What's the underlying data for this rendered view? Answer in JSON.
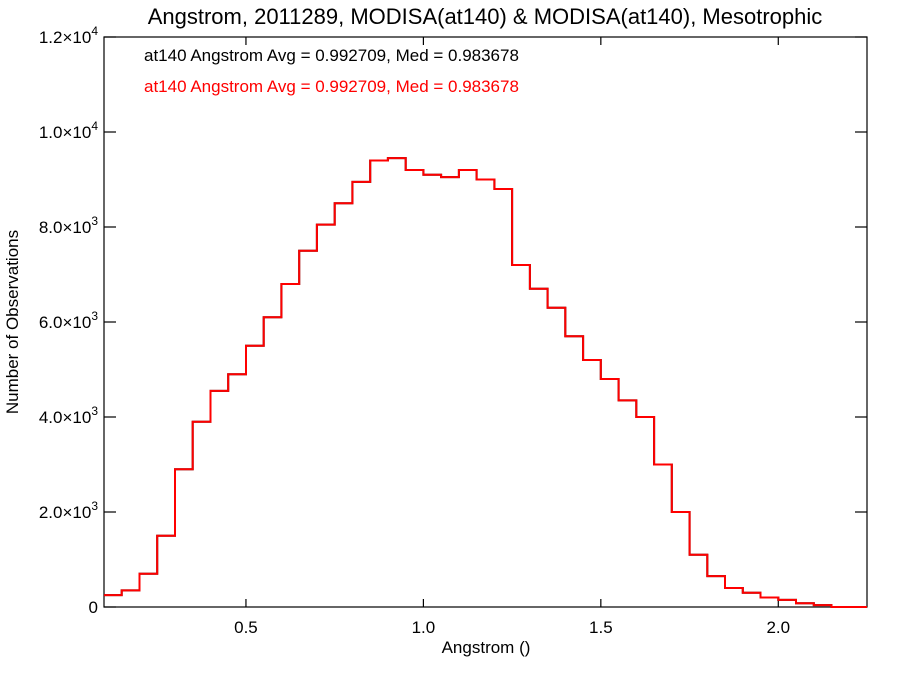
{
  "chart_data": {
    "type": "line",
    "title": "Angstrom, 2011289, MODISA(at140) & MODISA(at140), Mesotrophic",
    "xlabel": "Angstrom ()",
    "ylabel": "Number of Observations",
    "xlim": [
      0.1,
      2.25
    ],
    "ylim": [
      0,
      12000
    ],
    "x_ticks": [
      {
        "v": 0.5,
        "label": "0.5"
      },
      {
        "v": 1.0,
        "label": "1.0"
      },
      {
        "v": 1.5,
        "label": "1.5"
      },
      {
        "v": 2.0,
        "label": "2.0"
      }
    ],
    "y_ticks": [
      {
        "v": 0,
        "mant": "0",
        "exp": ""
      },
      {
        "v": 2000,
        "mant": "2.0×10",
        "exp": "3"
      },
      {
        "v": 4000,
        "mant": "4.0×10",
        "exp": "3"
      },
      {
        "v": 6000,
        "mant": "6.0×10",
        "exp": "3"
      },
      {
        "v": 8000,
        "mant": "8.0×10",
        "exp": "3"
      },
      {
        "v": 10000,
        "mant": "1.0×10",
        "exp": "4"
      },
      {
        "v": 12000,
        "mant": "1.2×10",
        "exp": "4"
      }
    ],
    "annotations": [
      {
        "text": "at140 Angstrom Avg = 0.992709, Med = 0.983678",
        "color": "#000000"
      },
      {
        "text": "at140 Angstrom Avg = 0.992709, Med = 0.983678",
        "color": "#ff0000"
      }
    ],
    "series": [
      {
        "color": "#000000",
        "x": [
          0.1,
          0.15,
          0.2,
          0.25,
          0.3,
          0.35,
          0.4,
          0.45,
          0.5,
          0.55,
          0.6,
          0.65,
          0.7,
          0.75,
          0.8,
          0.85,
          0.9,
          0.95,
          1.0,
          1.05,
          1.1,
          1.15,
          1.2,
          1.25,
          1.3,
          1.35,
          1.4,
          1.45,
          1.5,
          1.55,
          1.6,
          1.65,
          1.7,
          1.75,
          1.8,
          1.85,
          1.9,
          1.95,
          2.0,
          2.05,
          2.1,
          2.15,
          2.2,
          2.25
        ],
        "y": [
          250,
          350,
          700,
          1500,
          2900,
          3900,
          4550,
          4900,
          5500,
          6100,
          6800,
          7500,
          8050,
          8500,
          8950,
          9400,
          9450,
          9200,
          9100,
          9050,
          9200,
          9000,
          8800,
          7200,
          6700,
          6300,
          5700,
          5200,
          4800,
          4350,
          4000,
          3000,
          2000,
          1100,
          650,
          400,
          300,
          200,
          150,
          80,
          40,
          0,
          0,
          0
        ]
      },
      {
        "color": "#ff0000",
        "x": [
          0.1,
          0.15,
          0.2,
          0.25,
          0.3,
          0.35,
          0.4,
          0.45,
          0.5,
          0.55,
          0.6,
          0.65,
          0.7,
          0.75,
          0.8,
          0.85,
          0.9,
          0.95,
          1.0,
          1.05,
          1.1,
          1.15,
          1.2,
          1.25,
          1.3,
          1.35,
          1.4,
          1.45,
          1.5,
          1.55,
          1.6,
          1.65,
          1.7,
          1.75,
          1.8,
          1.85,
          1.9,
          1.95,
          2.0,
          2.05,
          2.1,
          2.15,
          2.2,
          2.25
        ],
        "y": [
          250,
          350,
          700,
          1500,
          2900,
          3900,
          4550,
          4900,
          5500,
          6100,
          6800,
          7500,
          8050,
          8500,
          8950,
          9400,
          9450,
          9200,
          9100,
          9050,
          9200,
          9000,
          8800,
          7200,
          6700,
          6300,
          5700,
          5200,
          4800,
          4350,
          4000,
          3000,
          2000,
          1100,
          650,
          400,
          300,
          200,
          150,
          80,
          40,
          0,
          0,
          0
        ]
      }
    ]
  }
}
